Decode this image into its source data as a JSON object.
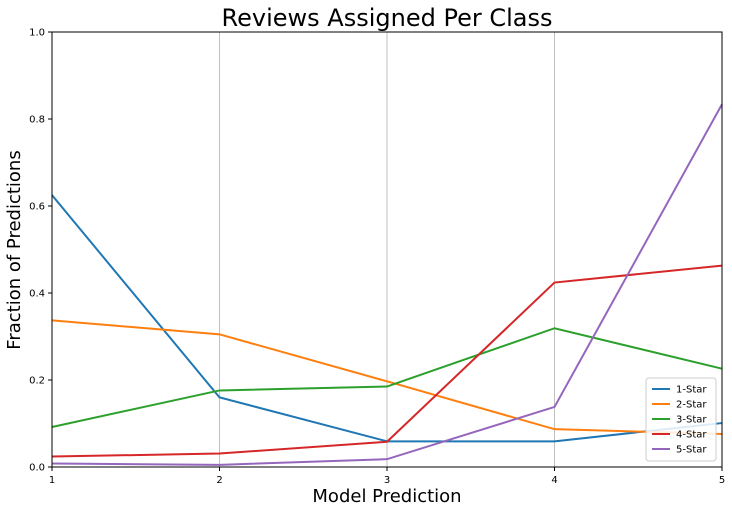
{
  "chart_data": {
    "type": "line",
    "title": "Reviews Assigned Per Class",
    "xlabel": "Model Prediction",
    "ylabel": "Fraction of Predictions",
    "x": [
      1,
      2,
      3,
      4,
      5
    ],
    "xlim": [
      1,
      5
    ],
    "ylim": [
      0,
      1.0
    ],
    "x_ticks": [
      "1",
      "2",
      "3",
      "4",
      "5"
    ],
    "y_ticks": [
      "0.0",
      "0.2",
      "0.4",
      "0.6",
      "0.8",
      "1.0"
    ],
    "grid": "vertical",
    "legend_position": "bottom-right",
    "series": [
      {
        "name": "1-Star",
        "color": "#1f77b4",
        "values": [
          0.625,
          0.16,
          0.059,
          0.059,
          0.101
        ]
      },
      {
        "name": "2-Star",
        "color": "#ff7f0e",
        "values": [
          0.337,
          0.305,
          0.197,
          0.087,
          0.076
        ]
      },
      {
        "name": "3-Star",
        "color": "#2ca02c",
        "values": [
          0.092,
          0.176,
          0.185,
          0.319,
          0.226
        ]
      },
      {
        "name": "4-Star",
        "color": "#d62728",
        "values": [
          0.024,
          0.031,
          0.058,
          0.424,
          0.463
        ]
      },
      {
        "name": "5-Star",
        "color": "#9467bd",
        "values": [
          0.008,
          0.005,
          0.018,
          0.138,
          0.834
        ]
      }
    ]
  }
}
